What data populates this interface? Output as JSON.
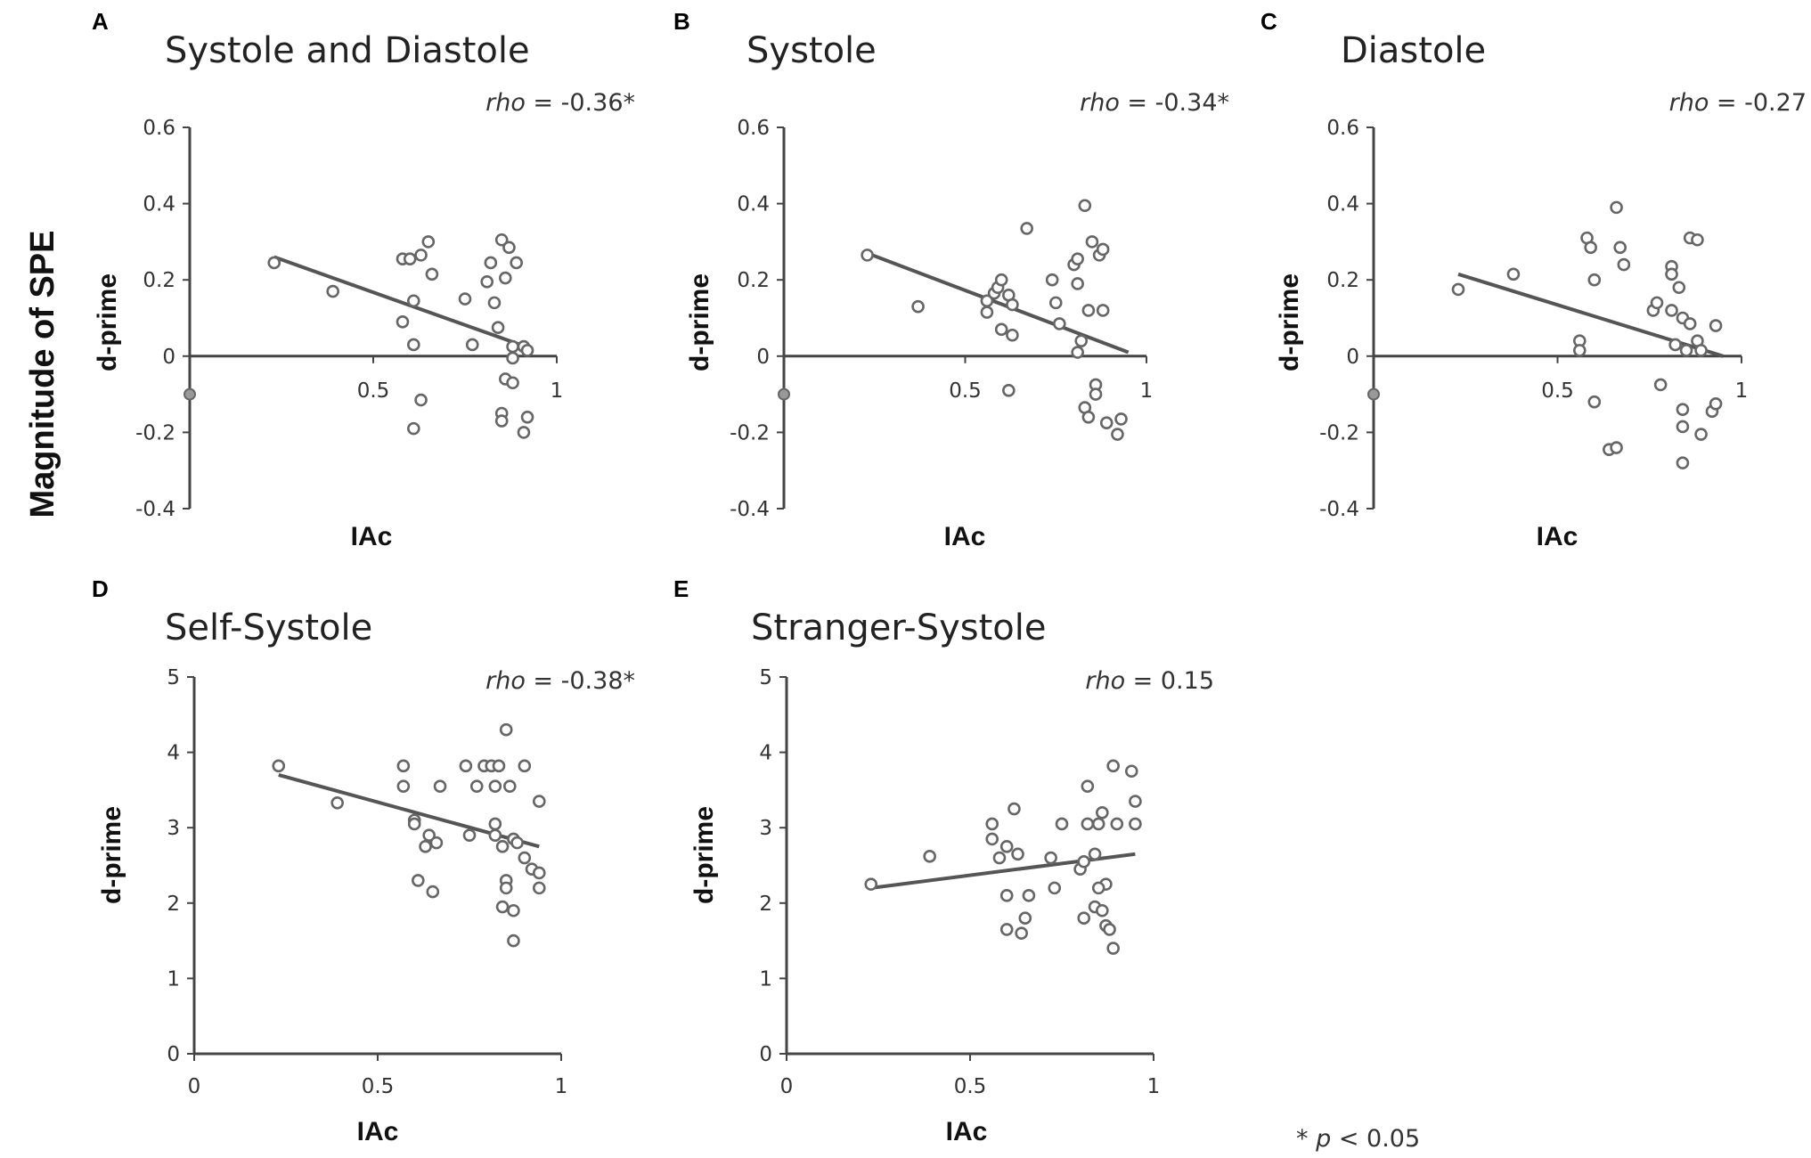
{
  "figure": {
    "y_label_global": "Magnitude of SPE",
    "footnote_prefix": "* ",
    "footnote_p": "p",
    "footnote_rest": " < 0.05"
  },
  "chart_data": [
    {
      "type": "scatter",
      "letter": "A",
      "title": "Systole and Diastole",
      "xlabel": "IAc",
      "ylabel": "d-prime",
      "xlim": [
        0,
        1
      ],
      "ylim": [
        -0.4,
        0.6
      ],
      "yticks": [
        "0.6",
        "0.4",
        "0.2",
        "0",
        "-0.2",
        "-0.4"
      ],
      "ytick_values": [
        0.6,
        0.4,
        0.2,
        0,
        -0.2,
        -0.4
      ],
      "xticks": [
        "0.5",
        "1"
      ],
      "xtick_values": [
        0.5,
        1
      ],
      "rho_label": "rho",
      "rho_value": " = -0.36*",
      "origin_marker": true,
      "fit": [
        [
          0.23,
          0.26
        ],
        [
          0.93,
          0.02
        ]
      ],
      "points": [
        [
          0.23,
          0.245
        ],
        [
          0.39,
          0.17
        ],
        [
          0.58,
          0.255
        ],
        [
          0.6,
          0.255
        ],
        [
          0.63,
          0.265
        ],
        [
          0.65,
          0.3
        ],
        [
          0.66,
          0.215
        ],
        [
          0.61,
          0.145
        ],
        [
          0.58,
          0.09
        ],
        [
          0.61,
          0.03
        ],
        [
          0.75,
          0.15
        ],
        [
          0.77,
          0.03
        ],
        [
          0.81,
          0.195
        ],
        [
          0.82,
          0.245
        ],
        [
          0.83,
          0.14
        ],
        [
          0.84,
          0.075
        ],
        [
          0.85,
          0.305
        ],
        [
          0.86,
          0.205
        ],
        [
          0.87,
          0.285
        ],
        [
          0.89,
          0.245
        ],
        [
          0.88,
          0.025
        ],
        [
          0.91,
          0.025
        ],
        [
          0.92,
          0.015
        ],
        [
          0.86,
          -0.06
        ],
        [
          0.88,
          -0.07
        ],
        [
          0.85,
          -0.15
        ],
        [
          0.85,
          -0.17
        ],
        [
          0.92,
          -0.16
        ],
        [
          0.91,
          -0.2
        ],
        [
          0.63,
          -0.115
        ],
        [
          0.61,
          -0.19
        ],
        [
          0.88,
          -0.005
        ]
      ]
    },
    {
      "type": "scatter",
      "letter": "B",
      "title": "Systole",
      "xlabel": "IAc",
      "ylabel": "d-prime",
      "xlim": [
        0,
        1
      ],
      "ylim": [
        -0.4,
        0.6
      ],
      "yticks": [
        "0.6",
        "0.4",
        "0.2",
        "0",
        "-0.2",
        "-0.4"
      ],
      "ytick_values": [
        0.6,
        0.4,
        0.2,
        0,
        -0.2,
        -0.4
      ],
      "xticks": [
        "0.5",
        "1"
      ],
      "xtick_values": [
        0.5,
        1
      ],
      "rho_label": "rho",
      "rho_value": " = -0.34*",
      "origin_marker": true,
      "fit": [
        [
          0.23,
          0.27
        ],
        [
          0.95,
          0.01
        ]
      ],
      "points": [
        [
          0.23,
          0.265
        ],
        [
          0.37,
          0.13
        ],
        [
          0.56,
          0.145
        ],
        [
          0.56,
          0.115
        ],
        [
          0.58,
          0.165
        ],
        [
          0.59,
          0.18
        ],
        [
          0.6,
          0.2
        ],
        [
          0.62,
          0.16
        ],
        [
          0.63,
          0.135
        ],
        [
          0.63,
          0.055
        ],
        [
          0.6,
          0.07
        ],
        [
          0.67,
          0.335
        ],
        [
          0.74,
          0.2
        ],
        [
          0.75,
          0.14
        ],
        [
          0.76,
          0.085
        ],
        [
          0.8,
          0.24
        ],
        [
          0.81,
          0.255
        ],
        [
          0.81,
          0.19
        ],
        [
          0.83,
          0.395
        ],
        [
          0.85,
          0.3
        ],
        [
          0.87,
          0.265
        ],
        [
          0.88,
          0.28
        ],
        [
          0.84,
          0.12
        ],
        [
          0.88,
          0.12
        ],
        [
          0.82,
          0.04
        ],
        [
          0.81,
          0.01
        ],
        [
          0.86,
          -0.075
        ],
        [
          0.86,
          -0.1
        ],
        [
          0.83,
          -0.135
        ],
        [
          0.84,
          -0.16
        ],
        [
          0.89,
          -0.175
        ],
        [
          0.93,
          -0.165
        ],
        [
          0.92,
          -0.205
        ],
        [
          0.62,
          -0.09
        ]
      ]
    },
    {
      "type": "scatter",
      "letter": "C",
      "title": "Diastole",
      "xlabel": "IAc",
      "ylabel": "d-prime",
      "xlim": [
        0,
        1
      ],
      "ylim": [
        -0.4,
        0.6
      ],
      "yticks": [
        "0.6",
        "0.4",
        "0.2",
        "0",
        "-0.2",
        "-0.4"
      ],
      "ytick_values": [
        0.6,
        0.4,
        0.2,
        0,
        -0.2,
        -0.4
      ],
      "xticks": [
        "0.5",
        "1"
      ],
      "xtick_values": [
        0.5,
        1
      ],
      "rho_label": "rho",
      "rho_value": " = -0.27",
      "origin_marker": true,
      "fit": [
        [
          0.23,
          0.215
        ],
        [
          0.95,
          0.0
        ]
      ],
      "points": [
        [
          0.23,
          0.175
        ],
        [
          0.38,
          0.215
        ],
        [
          0.56,
          0.04
        ],
        [
          0.56,
          0.015
        ],
        [
          0.58,
          0.31
        ],
        [
          0.59,
          0.285
        ],
        [
          0.6,
          0.2
        ],
        [
          0.66,
          0.39
        ],
        [
          0.67,
          0.285
        ],
        [
          0.68,
          0.24
        ],
        [
          0.76,
          0.12
        ],
        [
          0.77,
          0.14
        ],
        [
          0.81,
          0.235
        ],
        [
          0.81,
          0.215
        ],
        [
          0.81,
          0.12
        ],
        [
          0.83,
          0.18
        ],
        [
          0.84,
          0.1
        ],
        [
          0.86,
          0.085
        ],
        [
          0.86,
          0.31
        ],
        [
          0.88,
          0.305
        ],
        [
          0.93,
          0.08
        ],
        [
          0.82,
          0.03
        ],
        [
          0.85,
          0.015
        ],
        [
          0.88,
          0.04
        ],
        [
          0.89,
          0.015
        ],
        [
          0.78,
          -0.075
        ],
        [
          0.84,
          -0.14
        ],
        [
          0.84,
          -0.185
        ],
        [
          0.84,
          -0.28
        ],
        [
          0.6,
          -0.12
        ],
        [
          0.64,
          -0.245
        ],
        [
          0.66,
          -0.24
        ],
        [
          0.92,
          -0.145
        ],
        [
          0.93,
          -0.125
        ],
        [
          0.89,
          -0.205
        ]
      ]
    },
    {
      "type": "scatter",
      "letter": "D",
      "title": "Self-Systole",
      "xlabel": "IAc",
      "ylabel": "d-prime",
      "xlim": [
        0,
        1
      ],
      "ylim": [
        0,
        5
      ],
      "yticks": [
        "5",
        "4",
        "3",
        "2",
        "1",
        "0"
      ],
      "ytick_values": [
        5,
        4,
        3,
        2,
        1,
        0
      ],
      "xticks": [
        "0",
        "0.5",
        "1"
      ],
      "xtick_values": [
        0,
        0.5,
        1
      ],
      "rho_label": "rho",
      "rho_value": " = -0.38*",
      "origin_marker": false,
      "fit": [
        [
          0.23,
          3.7
        ],
        [
          0.94,
          2.75
        ]
      ],
      "points": [
        [
          0.23,
          3.82
        ],
        [
          0.39,
          3.33
        ],
        [
          0.57,
          3.82
        ],
        [
          0.57,
          3.55
        ],
        [
          0.6,
          3.1
        ],
        [
          0.6,
          3.05
        ],
        [
          0.61,
          2.3
        ],
        [
          0.63,
          2.75
        ],
        [
          0.64,
          2.9
        ],
        [
          0.65,
          2.15
        ],
        [
          0.66,
          2.8
        ],
        [
          0.67,
          3.55
        ],
        [
          0.74,
          3.82
        ],
        [
          0.75,
          2.9
        ],
        [
          0.77,
          3.55
        ],
        [
          0.79,
          3.82
        ],
        [
          0.81,
          3.82
        ],
        [
          0.82,
          3.55
        ],
        [
          0.83,
          3.82
        ],
        [
          0.82,
          3.05
        ],
        [
          0.82,
          2.9
        ],
        [
          0.84,
          2.75
        ],
        [
          0.85,
          4.3
        ],
        [
          0.86,
          3.55
        ],
        [
          0.87,
          2.85
        ],
        [
          0.88,
          2.8
        ],
        [
          0.9,
          3.82
        ],
        [
          0.9,
          2.6
        ],
        [
          0.92,
          2.45
        ],
        [
          0.94,
          3.35
        ],
        [
          0.94,
          2.4
        ],
        [
          0.94,
          2.2
        ],
        [
          0.85,
          2.3
        ],
        [
          0.85,
          2.2
        ],
        [
          0.84,
          1.95
        ],
        [
          0.87,
          1.9
        ],
        [
          0.87,
          1.5
        ]
      ]
    },
    {
      "type": "scatter",
      "letter": "E",
      "title": "Stranger-Systole",
      "xlabel": "IAc",
      "ylabel": "d-prime",
      "xlim": [
        0,
        1
      ],
      "ylim": [
        0,
        5
      ],
      "yticks": [
        "5",
        "4",
        "3",
        "2",
        "1",
        "0"
      ],
      "ytick_values": [
        5,
        4,
        3,
        2,
        1,
        0
      ],
      "xticks": [
        "0",
        "0.5",
        "1"
      ],
      "xtick_values": [
        0,
        0.5,
        1
      ],
      "rho_label": "rho",
      "rho_value": " = 0.15",
      "origin_marker": false,
      "fit": [
        [
          0.23,
          2.2
        ],
        [
          0.95,
          2.65
        ]
      ],
      "points": [
        [
          0.23,
          2.25
        ],
        [
          0.39,
          2.62
        ],
        [
          0.56,
          3.05
        ],
        [
          0.56,
          2.85
        ],
        [
          0.58,
          2.6
        ],
        [
          0.6,
          2.75
        ],
        [
          0.62,
          3.25
        ],
        [
          0.63,
          2.65
        ],
        [
          0.6,
          2.1
        ],
        [
          0.6,
          1.65
        ],
        [
          0.64,
          1.6
        ],
        [
          0.66,
          2.1
        ],
        [
          0.65,
          1.8
        ],
        [
          0.72,
          2.6
        ],
        [
          0.73,
          2.2
        ],
        [
          0.75,
          3.05
        ],
        [
          0.8,
          2.45
        ],
        [
          0.81,
          2.55
        ],
        [
          0.82,
          3.55
        ],
        [
          0.82,
          3.05
        ],
        [
          0.84,
          2.65
        ],
        [
          0.85,
          3.05
        ],
        [
          0.86,
          3.2
        ],
        [
          0.87,
          2.25
        ],
        [
          0.85,
          2.2
        ],
        [
          0.84,
          1.95
        ],
        [
          0.86,
          1.9
        ],
        [
          0.87,
          1.7
        ],
        [
          0.88,
          1.65
        ],
        [
          0.89,
          3.82
        ],
        [
          0.9,
          3.05
        ],
        [
          0.89,
          1.4
        ],
        [
          0.81,
          1.8
        ],
        [
          0.94,
          3.75
        ],
        [
          0.95,
          3.35
        ],
        [
          0.95,
          3.05
        ]
      ]
    }
  ]
}
